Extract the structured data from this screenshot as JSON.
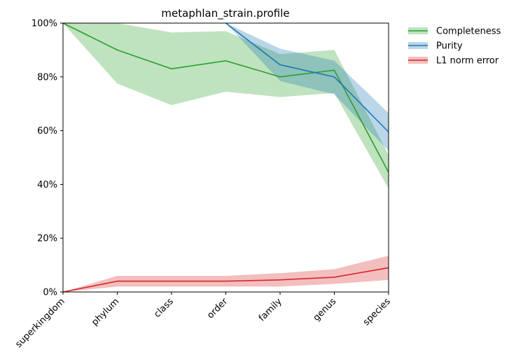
{
  "chart_data": {
    "type": "line",
    "title": "metaphlan_strain.profile",
    "xlabel": "",
    "ylabel": "",
    "categories": [
      "superkingdom",
      "phylum",
      "class",
      "order",
      "family",
      "genus",
      "species"
    ],
    "ylim": [
      0,
      100
    ],
    "yticks": [
      "0%",
      "20%",
      "40%",
      "60%",
      "80%",
      "100%"
    ],
    "legend_position": "outside-top-right",
    "grid": false,
    "series": [
      {
        "name": "Completeness",
        "color": "#2ca02c",
        "band_color": "#98d590",
        "values": [
          100,
          90,
          83,
          86,
          80,
          82.5,
          44.5
        ],
        "lower": [
          100,
          77.5,
          69.5,
          74.5,
          72.5,
          74,
          38.5
        ],
        "upper": [
          100,
          100,
          96.5,
          97,
          88.5,
          90,
          51
        ]
      },
      {
        "name": "Purity",
        "color": "#1f77b4",
        "band_color": "#8fb9dd",
        "start_index": 3,
        "values": [
          null,
          null,
          null,
          100,
          84.5,
          80,
          59.5
        ],
        "lower": [
          null,
          null,
          null,
          100,
          78.5,
          73.5,
          52.5
        ],
        "upper": [
          null,
          null,
          null,
          100,
          90.5,
          86,
          66.5
        ]
      },
      {
        "name": "L1 norm error",
        "color": "#d62728",
        "band_color": "#eb9293",
        "values": [
          0,
          4,
          4,
          4,
          4.5,
          5.5,
          9
        ],
        "lower": [
          0,
          2,
          2,
          2,
          2,
          3,
          4.5
        ],
        "upper": [
          0,
          6,
          6,
          6,
          7,
          8.5,
          13.5
        ]
      }
    ]
  }
}
